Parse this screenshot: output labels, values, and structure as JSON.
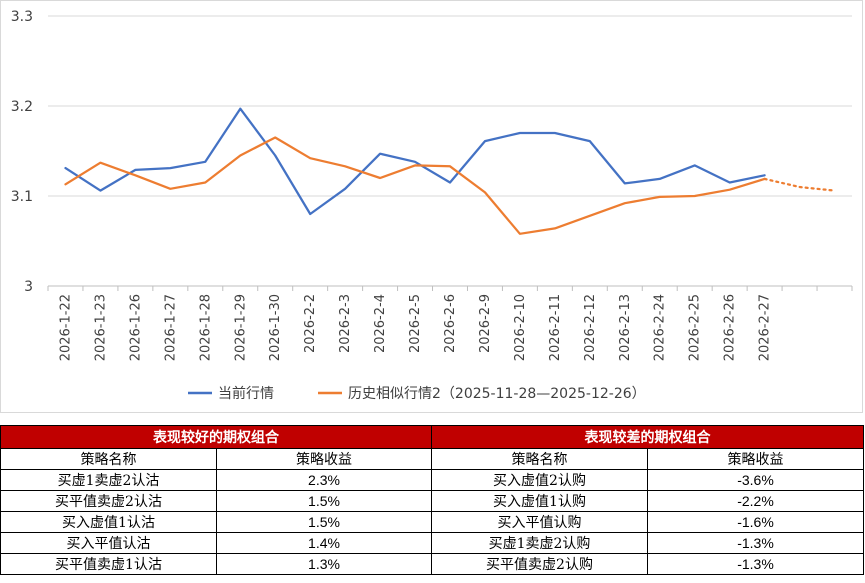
{
  "chart_data": {
    "type": "line",
    "ylim": [
      3,
      3.3
    ],
    "yticks": [
      "3.3",
      "3.2",
      "3.1",
      "3"
    ],
    "categories": [
      "2026-1-22",
      "2026-1-23",
      "2026-1-26",
      "2026-1-27",
      "2026-1-28",
      "2026-1-29",
      "2026-1-30",
      "2026-2-2",
      "2026-2-3",
      "2026-2-4",
      "2026-2-5",
      "2026-2-6",
      "2026-2-9",
      "2026-2-10",
      "2026-2-11",
      "2026-2-12",
      "2026-2-13",
      "2026-2-24",
      "2026-2-25",
      "2026-2-26",
      "2026-2-27",
      "",
      ""
    ],
    "grid": "horizontal",
    "legend_position": "bottom",
    "series": [
      {
        "name": "当前行情",
        "color": "#4472c4",
        "values": [
          3.131,
          3.106,
          3.129,
          3.131,
          3.138,
          3.197,
          3.145,
          3.08,
          3.108,
          3.147,
          3.138,
          3.115,
          3.161,
          3.17,
          3.17,
          3.161,
          3.114,
          3.119,
          3.134,
          3.115,
          3.123,
          null,
          null
        ]
      },
      {
        "name": "历史相似行情2（2025-11-28—2025-12-26）",
        "color": "#ed7d31",
        "values": [
          3.113,
          3.137,
          3.123,
          3.108,
          3.115,
          3.145,
          3.165,
          3.142,
          3.133,
          3.12,
          3.134,
          3.133,
          3.104,
          3.058,
          3.064,
          3.078,
          3.092,
          3.099,
          3.1,
          3.107,
          3.119,
          3.11,
          3.106
        ],
        "dashed_from_index": 20
      }
    ]
  },
  "tables": {
    "good": {
      "title": "表现较好的期权组合",
      "col_name": "策略名称",
      "col_return": "策略收益",
      "rows": [
        {
          "name": "买虚1卖虚2认沽",
          "ret": "2.3%"
        },
        {
          "name": "买平值卖虚2认沽",
          "ret": "1.5%"
        },
        {
          "name": "买入虚值1认沽",
          "ret": "1.5%"
        },
        {
          "name": "买入平值认沽",
          "ret": "1.4%"
        },
        {
          "name": "买平值卖虚1认沽",
          "ret": "1.3%"
        }
      ]
    },
    "bad": {
      "title": "表现较差的期权组合",
      "col_name": "策略名称",
      "col_return": "策略收益",
      "rows": [
        {
          "name": "买入虚值2认购",
          "ret": "-3.6%"
        },
        {
          "name": "买入虚值1认购",
          "ret": "-2.2%"
        },
        {
          "name": "买入平值认购",
          "ret": "-1.6%"
        },
        {
          "name": "买虚1卖虚2认购",
          "ret": "-1.3%"
        },
        {
          "name": "买平值卖虚2认购",
          "ret": "-1.3%"
        }
      ]
    }
  },
  "colors": {
    "header_bg": "#c00000",
    "positive": "#e00000",
    "negative": "#008000"
  }
}
